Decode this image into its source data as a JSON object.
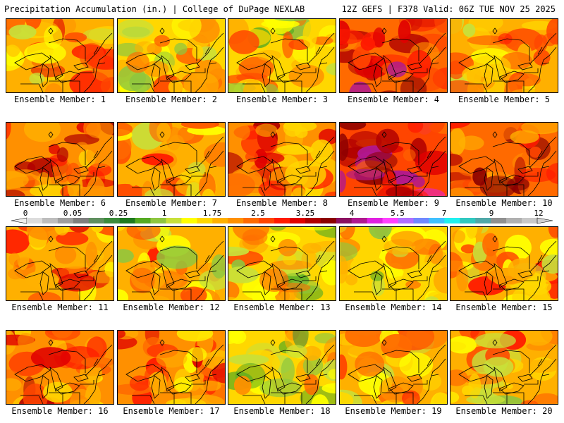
{
  "header": {
    "left": "Precipitation Accumulation (in.) | College of DuPage NEXLAB",
    "right": "12Z GEFS | F378 Valid: 06Z TUE NOV 25 2025"
  },
  "members": [
    {
      "label": "Ensemble Member: 1",
      "intensity": 0.55
    },
    {
      "label": "Ensemble Member: 2",
      "intensity": 0.4
    },
    {
      "label": "Ensemble Member: 3",
      "intensity": 0.35
    },
    {
      "label": "Ensemble Member: 4",
      "intensity": 0.85
    },
    {
      "label": "Ensemble Member: 5",
      "intensity": 0.5
    },
    {
      "label": "Ensemble Member: 6",
      "intensity": 0.7
    },
    {
      "label": "Ensemble Member: 7",
      "intensity": 0.55
    },
    {
      "label": "Ensemble Member: 8",
      "intensity": 0.65
    },
    {
      "label": "Ensemble Member: 9",
      "intensity": 0.95
    },
    {
      "label": "Ensemble Member: 10",
      "intensity": 0.75
    },
    {
      "label": "Ensemble Member: 11",
      "intensity": 0.55
    },
    {
      "label": "Ensemble Member: 12",
      "intensity": 0.45
    },
    {
      "label": "Ensemble Member: 13",
      "intensity": 0.35
    },
    {
      "label": "Ensemble Member: 14",
      "intensity": 0.4
    },
    {
      "label": "Ensemble Member: 15",
      "intensity": 0.5
    },
    {
      "label": "Ensemble Member: 16",
      "intensity": 0.65
    },
    {
      "label": "Ensemble Member: 17",
      "intensity": 0.6
    },
    {
      "label": "Ensemble Member: 18",
      "intensity": 0.3
    },
    {
      "label": "Ensemble Member: 19",
      "intensity": 0.5
    },
    {
      "label": "Ensemble Member: 20",
      "intensity": 0.45
    }
  ],
  "colorbar": {
    "tick_labels": [
      "0",
      "0.05",
      "0.25",
      "1",
      "1.75",
      "2.5",
      "3.25",
      "4",
      "5.5",
      "7",
      "9",
      "12"
    ],
    "colors": [
      "#dcdcdc",
      "#bdbdbd",
      "#9e9e9e",
      "#7f7f7f",
      "#5f8f5f",
      "#3c8c3c",
      "#1f7a1f",
      "#55aa22",
      "#8ec63f",
      "#c8e03a",
      "#ffff00",
      "#ffd700",
      "#ffb000",
      "#ff9000",
      "#ff6a00",
      "#ff4500",
      "#ff1a00",
      "#e00000",
      "#b00000",
      "#8b0000",
      "#8b1060",
      "#b01890",
      "#e020e0",
      "#ff40ff",
      "#b070ff",
      "#7088ff",
      "#40c0ff",
      "#20f0f0",
      "#30c8c0",
      "#50a8a8",
      "#909090",
      "#b0b0b0",
      "#c8c8c8"
    ]
  }
}
